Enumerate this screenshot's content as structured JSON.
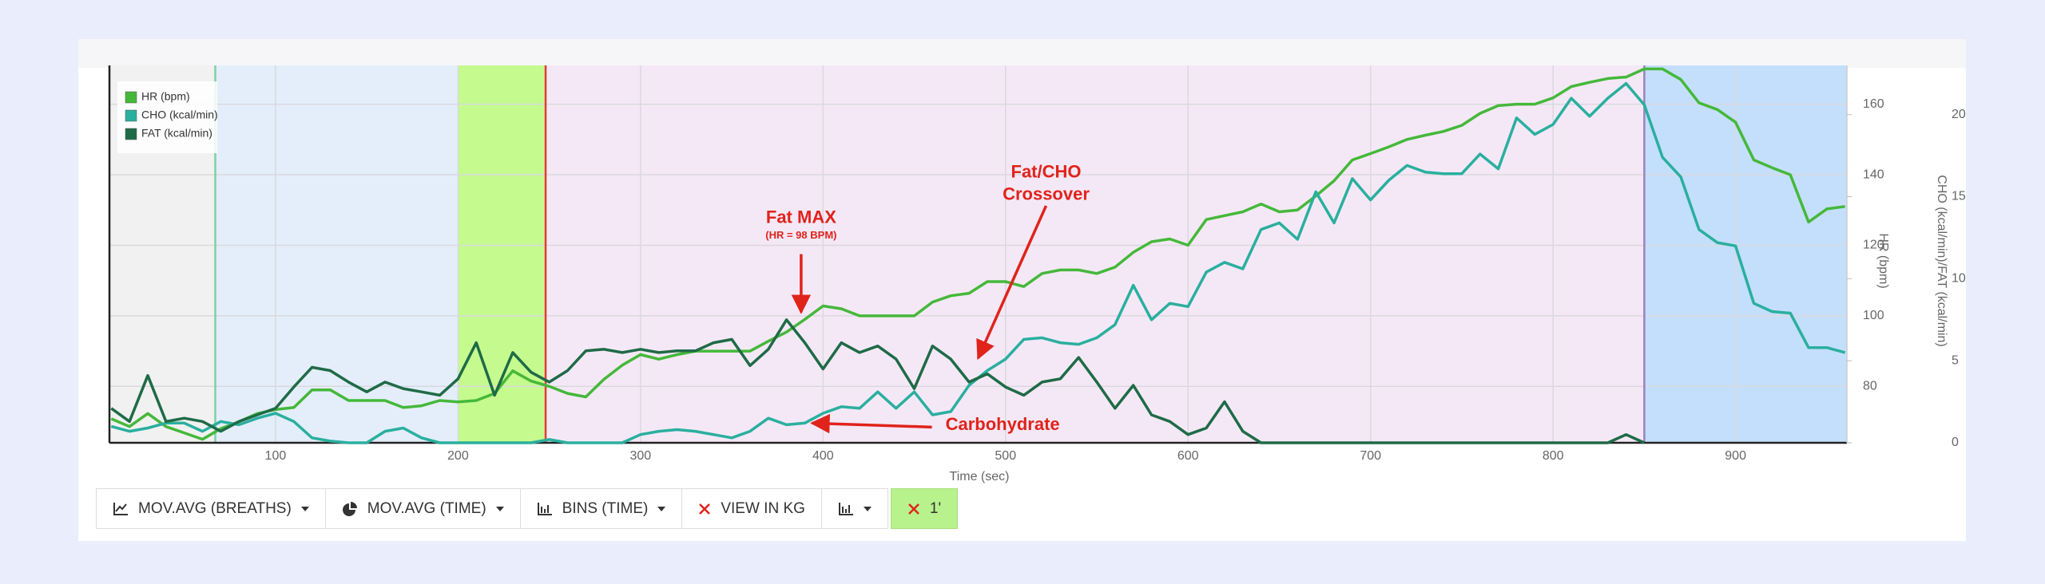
{
  "chart_data": {
    "type": "line",
    "x_label": "Time (sec)",
    "y_label": "HR (bpm)",
    "y2_label": "CHO (kcal/min)/FAT (kcal/min)",
    "xlim": [
      9,
      961
    ],
    "xticks": [
      100,
      200,
      300,
      400,
      500,
      600,
      700,
      800,
      900
    ],
    "ylim": [
      64,
      171
    ],
    "yticks": [
      80,
      100,
      120,
      140,
      160
    ],
    "y2lim": [
      0,
      23
    ],
    "y2ticks": [
      0,
      5,
      10,
      15,
      20
    ],
    "grid": true,
    "legend": "upper left",
    "phases": [
      {
        "start": 9,
        "end": 67,
        "color": "#f1f1f1"
      },
      {
        "start": 67,
        "end": 200,
        "color": "#e4eefa"
      },
      {
        "start": 200,
        "end": 248,
        "color": "#c5fa8e"
      },
      {
        "start": 248,
        "end": 850,
        "color": "#f5e8f6"
      },
      {
        "start": 850,
        "end": 961,
        "color": "#c4dffb"
      }
    ],
    "boundaries": [
      {
        "x": 67,
        "color": "#7fd0a4"
      },
      {
        "x": 248,
        "color": "#e53935"
      },
      {
        "x": 850,
        "color": "#9b82c2"
      }
    ],
    "x": [
      10,
      20,
      30,
      40,
      50,
      60,
      70,
      80,
      90,
      100,
      110,
      120,
      130,
      140,
      150,
      160,
      170,
      180,
      190,
      200,
      210,
      220,
      230,
      240,
      250,
      260,
      270,
      280,
      290,
      300,
      310,
      320,
      330,
      340,
      350,
      360,
      370,
      380,
      390,
      400,
      410,
      420,
      430,
      440,
      450,
      460,
      470,
      480,
      490,
      500,
      510,
      520,
      530,
      540,
      550,
      560,
      570,
      580,
      590,
      600,
      610,
      620,
      630,
      640,
      650,
      660,
      670,
      680,
      690,
      700,
      710,
      720,
      730,
      740,
      750,
      760,
      770,
      780,
      790,
      800,
      810,
      820,
      830,
      840,
      850,
      860,
      870,
      880,
      890,
      900,
      910,
      920,
      930,
      940,
      950,
      960
    ],
    "series": [
      {
        "name": "HR (bpm)",
        "color": "#45b83a",
        "axis": "y",
        "values": [
          70.8,
          68.6,
          72.3,
          68.6,
          66.8,
          65,
          68,
          70,
          72.3,
          73.4,
          74,
          79,
          79,
          76,
          76,
          76,
          74,
          74.5,
          76,
          75.6,
          76,
          78,
          84.4,
          81.5,
          80,
          78,
          77,
          82,
          86,
          89,
          87.7,
          89,
          90,
          90,
          90,
          90,
          92.8,
          95.4,
          99,
          102.8,
          102,
          100,
          100,
          100,
          100,
          103.9,
          105.7,
          106.4,
          109.7,
          109.7,
          108.3,
          112,
          113,
          113,
          112,
          113.8,
          118,
          121,
          121.8,
          120,
          127.3,
          128.4,
          129.5,
          131.7,
          129.5,
          130,
          134,
          138.3,
          144.2,
          146,
          147.9,
          150,
          151.2,
          152.3,
          154,
          157.4,
          159.6,
          160,
          160,
          161.8,
          165,
          166.2,
          167.3,
          167.7,
          170,
          170,
          167,
          160.4,
          158.5,
          154.9,
          144.2,
          142,
          140,
          126.6,
          130.3,
          131
        ]
      },
      {
        "name": "CHO (kcal/min)",
        "color": "#2aaf9f",
        "axis": "y2",
        "values": [
          1.0,
          0.7,
          0.9,
          1.2,
          1.2,
          0.7,
          1.3,
          1.1,
          1.5,
          1.8,
          1.3,
          0.3,
          0.1,
          0,
          0,
          0.7,
          0.9,
          0.3,
          0,
          0,
          0,
          0,
          0,
          0,
          0.2,
          0,
          0,
          0,
          0,
          0.5,
          0.7,
          0.8,
          0.7,
          0.5,
          0.3,
          0.7,
          1.5,
          1.1,
          1.2,
          1.8,
          2.2,
          2.1,
          3.1,
          2.1,
          3.1,
          1.7,
          1.9,
          3.5,
          4.4,
          5.1,
          6.3,
          6.4,
          6.1,
          6.0,
          6.4,
          7.2,
          9.6,
          7.5,
          8.5,
          8.3,
          10.4,
          11.0,
          10.6,
          13.0,
          13.4,
          12.4,
          15.3,
          13.4,
          16.1,
          14.8,
          16,
          16.9,
          16.5,
          16.4,
          16.4,
          17.6,
          16.7,
          19.8,
          18.8,
          19.4,
          21,
          19.9,
          21,
          21.9,
          20.6,
          17.4,
          16.2,
          13,
          12.2,
          12,
          8.5,
          8.0,
          7.9,
          5.8,
          5.8,
          5.5
        ]
      },
      {
        "name": "FAT (kcal/min)",
        "color": "#1f6b47",
        "axis": "y2",
        "values": [
          2.1,
          1.3,
          4.1,
          1.3,
          1.5,
          1.3,
          0.7,
          1.3,
          1.7,
          2.1,
          3.4,
          4.6,
          4.4,
          3.7,
          3.1,
          3.7,
          3.3,
          3.1,
          2.9,
          3.9,
          6.1,
          2.9,
          5.5,
          4.3,
          3.7,
          4.4,
          5.6,
          5.7,
          5.5,
          5.7,
          5.5,
          5.6,
          5.6,
          6.1,
          6.3,
          4.7,
          5.7,
          7.5,
          6.1,
          4.5,
          6.1,
          5.5,
          5.9,
          5.1,
          3.3,
          5.9,
          5.1,
          3.7,
          4.2,
          3.4,
          2.9,
          3.7,
          3.9,
          5.2,
          3.7,
          2.1,
          3.5,
          1.7,
          1.3,
          0.5,
          0.9,
          2.5,
          0.7,
          0,
          0,
          0,
          0,
          0,
          0,
          0,
          0,
          0,
          0,
          0,
          0,
          0,
          0,
          0,
          0,
          0,
          0,
          0,
          0,
          0.5,
          0,
          null,
          null,
          null,
          null,
          null,
          null,
          null,
          null,
          null,
          null,
          null
        ]
      }
    ],
    "annotations": [
      {
        "lines": [
          "Fat MAX"
        ],
        "subtext": "(HR = 98 BPM)",
        "x": 388,
        "y": 101,
        "axis": "y",
        "color": "#e0231b"
      },
      {
        "lines": [
          "Fat/CHO",
          "Crossover"
        ],
        "x": 485,
        "y": 88,
        "axis": "y",
        "color": "#e0231b"
      },
      {
        "lines": [
          "Carbohydrate"
        ],
        "x": 394,
        "y": 1.2,
        "axis": "y2",
        "color": "#e0231b"
      }
    ]
  },
  "toolbar": {
    "buttons": [
      "MOV.AVG (BREATHS)",
      "MOV.AVG (TIME)",
      "BINS (TIME)",
      "VIEW IN KG",
      "1'"
    ]
  }
}
